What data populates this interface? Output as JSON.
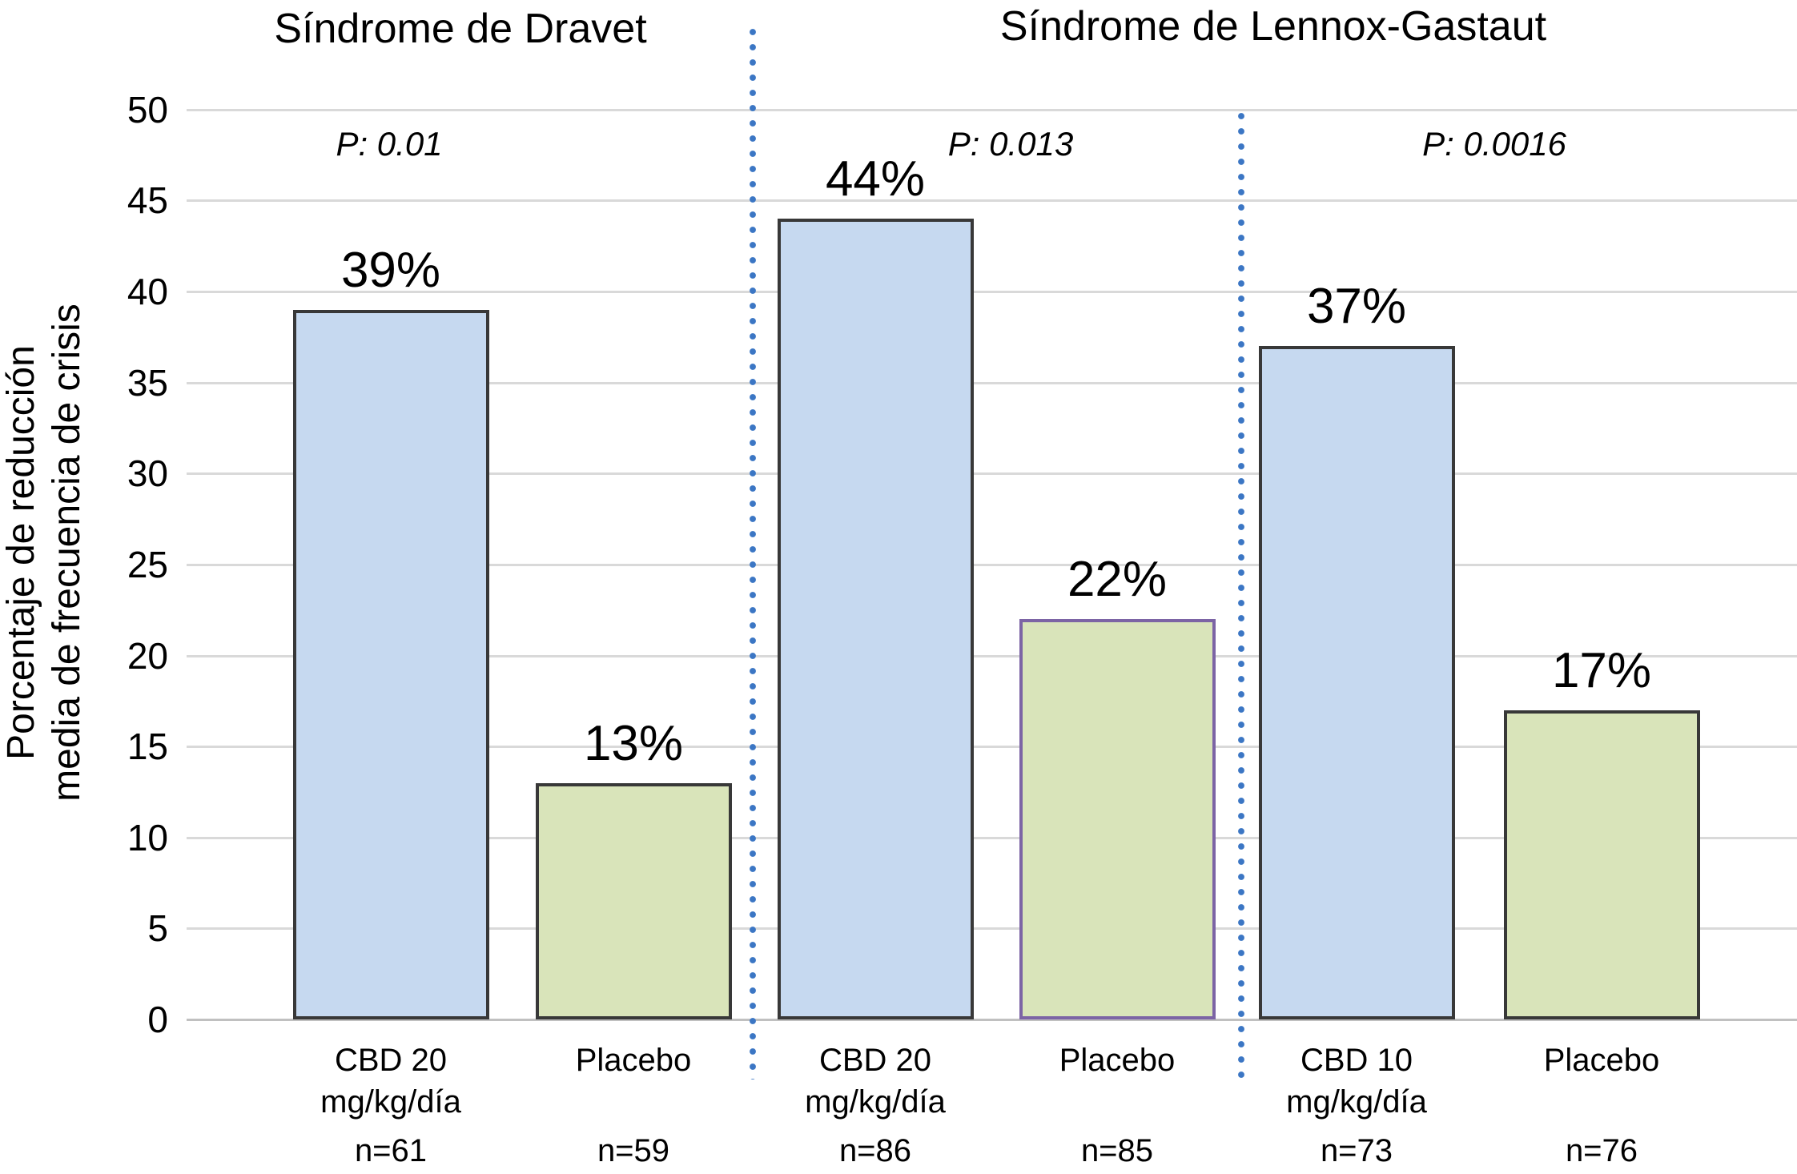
{
  "chart_data": {
    "type": "bar",
    "title_left": "Síndrome de Dravet",
    "title_right": "Síndrome de Lennox-Gastaut",
    "ylabel_lines": [
      "Porcentaje de reducción",
      "media de frecuencia de crisis"
    ],
    "ylim": [
      0,
      50
    ],
    "ytick_step": 5,
    "yticks": [
      0,
      5,
      10,
      15,
      20,
      25,
      30,
      35,
      40,
      45,
      50
    ],
    "grid": "horizontal-only",
    "legend": "none",
    "panels": [
      {
        "group": "Síndrome de Dravet",
        "p_label": "P: 0.01",
        "bars": [
          {
            "id": "dravet-cbd20",
            "series": "cbd",
            "label_lines": [
              "CBD 20",
              "mg/kg/día"
            ],
            "n": "n=61",
            "value": 39,
            "value_label": "39%"
          },
          {
            "id": "dravet-placebo",
            "series": "placebo",
            "label_lines": [
              "Placebo"
            ],
            "n": "n=59",
            "value": 13,
            "value_label": "13%"
          }
        ]
      },
      {
        "group": "Síndrome de Lennox-Gastaut",
        "p_label": "P: 0.013",
        "bars": [
          {
            "id": "lennox1-cbd20",
            "series": "cbd",
            "label_lines": [
              "CBD 20",
              "mg/kg/día"
            ],
            "n": "n=86",
            "value": 44,
            "value_label": "44%"
          },
          {
            "id": "lennox1-placebo",
            "series": "placebo",
            "accent_border": true,
            "label_lines": [
              "Placebo"
            ],
            "n": "n=85",
            "value": 22,
            "value_label": "22%"
          }
        ]
      },
      {
        "group": "Síndrome de Lennox-Gastaut",
        "p_label": "P: 0.0016",
        "bars": [
          {
            "id": "lennox2-cbd10",
            "series": "cbd",
            "label_lines": [
              "CBD 10",
              "mg/kg/día"
            ],
            "n": "n=73",
            "value": 37,
            "value_label": "37%"
          },
          {
            "id": "lennox2-placebo",
            "series": "placebo",
            "label_lines": [
              "Placebo"
            ],
            "n": "n=76",
            "value": 17,
            "value_label": "17%"
          }
        ]
      }
    ],
    "colors": {
      "cbd_fill": "#c6d9f0",
      "placebo_fill": "#d9e4ba",
      "bar_border": "#383838",
      "placebo_accent_border": "#7c64a5",
      "divider": "#3b76c4",
      "gridline": "#d9d9d9",
      "baseline": "#c0c0c0",
      "text": "#000000"
    }
  }
}
